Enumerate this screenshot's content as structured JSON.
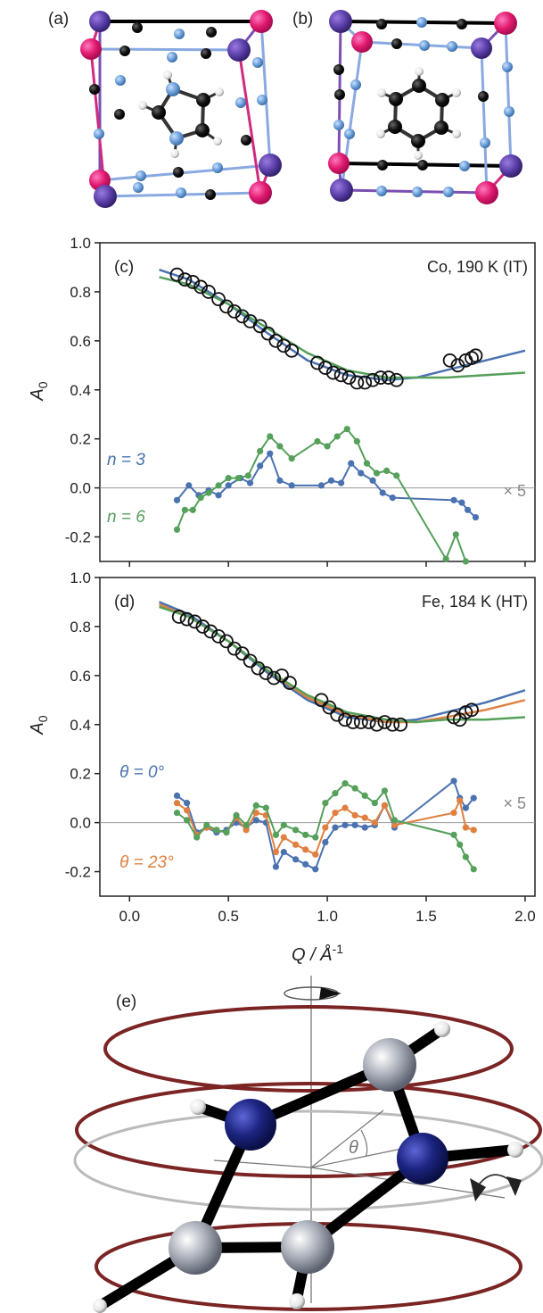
{
  "panel_labels": {
    "a": "(a)",
    "b": "(b)",
    "c": "(c)",
    "d": "(d)",
    "e": "(e)"
  },
  "chart_data": [
    {
      "type": "line",
      "panel": "(c)",
      "annotation": "Co, 190 K (IT)",
      "ylabel": "A",
      "ylabel_sub": "0",
      "xlim": [
        -0.15,
        2.05
      ],
      "ylim": [
        -0.3,
        1.0
      ],
      "yticks": [
        "-0.2",
        "0.0",
        "0.2",
        "0.4",
        "0.6",
        "0.8",
        "1.0"
      ],
      "xticks": [],
      "scale_note": "× 5",
      "colors": {
        "n3": "#4a72b0",
        "n6": "#55a05a",
        "data": "#111111"
      },
      "data_points": {
        "x": [
          0.24,
          0.28,
          0.32,
          0.36,
          0.4,
          0.45,
          0.49,
          0.53,
          0.57,
          0.61,
          0.66,
          0.7,
          0.74,
          0.78,
          0.82,
          0.95,
          0.99,
          1.03,
          1.07,
          1.11,
          1.15,
          1.19,
          1.23,
          1.27,
          1.31,
          1.35,
          1.62,
          1.66,
          1.7,
          1.73,
          1.75
        ],
        "y": [
          0.87,
          0.85,
          0.84,
          0.82,
          0.8,
          0.77,
          0.74,
          0.72,
          0.7,
          0.68,
          0.66,
          0.63,
          0.6,
          0.58,
          0.56,
          0.51,
          0.49,
          0.47,
          0.46,
          0.45,
          0.43,
          0.43,
          0.44,
          0.45,
          0.45,
          0.44,
          0.52,
          0.5,
          0.52,
          0.53,
          0.54
        ]
      },
      "fit_lines": [
        {
          "x": [
            0.15,
            0.3,
            0.5,
            0.7,
            0.9,
            1.1,
            1.3,
            1.45,
            1.6,
            1.8,
            2.0
          ],
          "y": [
            0.89,
            0.85,
            0.75,
            0.63,
            0.52,
            0.46,
            0.44,
            0.45,
            0.48,
            0.52,
            0.56
          ]
        },
        {
          "x": [
            0.15,
            0.3,
            0.5,
            0.7,
            0.9,
            1.1,
            1.3,
            1.45,
            1.6,
            1.8,
            2.0
          ],
          "y": [
            0.86,
            0.83,
            0.75,
            0.65,
            0.55,
            0.48,
            0.45,
            0.45,
            0.45,
            0.46,
            0.47
          ]
        }
      ],
      "series": [
        {
          "name": "n = 3",
          "x": [
            0.24,
            0.3,
            0.35,
            0.4,
            0.45,
            0.5,
            0.56,
            0.61,
            0.66,
            0.71,
            0.76,
            0.82,
            0.97,
            1.02,
            1.07,
            1.12,
            1.17,
            1.23,
            1.28,
            1.33,
            1.64,
            1.68,
            1.71,
            1.75
          ],
          "y": [
            -0.05,
            0.01,
            -0.03,
            -0.01,
            -0.03,
            0.01,
            0.04,
            0.02,
            0.09,
            0.14,
            0.03,
            0.01,
            0.01,
            0.03,
            0.02,
            0.1,
            0.06,
            0.03,
            -0.02,
            -0.04,
            -0.05,
            -0.06,
            -0.09,
            -0.12
          ]
        },
        {
          "name": "n = 6",
          "x": [
            0.24,
            0.28,
            0.32,
            0.36,
            0.4,
            0.45,
            0.5,
            0.55,
            0.6,
            0.66,
            0.71,
            0.76,
            0.82,
            0.95,
            1.0,
            1.05,
            1.1,
            1.15,
            1.2,
            1.25,
            1.3,
            1.35,
            1.6,
            1.65,
            1.7
          ],
          "y": [
            -0.17,
            -0.09,
            -0.09,
            -0.04,
            -0.02,
            0.01,
            0.04,
            0.04,
            0.05,
            0.15,
            0.21,
            0.17,
            0.12,
            0.19,
            0.17,
            0.21,
            0.24,
            0.19,
            0.1,
            0.06,
            0.07,
            0.05,
            -0.29,
            -0.19,
            -0.3
          ]
        }
      ]
    },
    {
      "type": "line",
      "panel": "(d)",
      "annotation": "Fe, 184 K (HT)",
      "ylabel": "A",
      "ylabel_sub": "0",
      "xlabel": "Q / Å",
      "xlabel_sup": "-1",
      "xlim": [
        -0.15,
        2.05
      ],
      "ylim": [
        -0.3,
        1.0
      ],
      "yticks": [
        "-0.2",
        "0.0",
        "0.2",
        "0.4",
        "0.6",
        "0.8",
        "1.0"
      ],
      "xticks": [
        "0.0",
        "0.5",
        "1.0",
        "1.5",
        "2.0"
      ],
      "scale_note": "× 5",
      "colors": {
        "t0": "#4a72b0",
        "t23": "#e08040",
        "t3": "#55a05a",
        "data": "#111111"
      },
      "data_points": {
        "x": [
          0.25,
          0.29,
          0.33,
          0.37,
          0.41,
          0.45,
          0.49,
          0.53,
          0.57,
          0.61,
          0.65,
          0.69,
          0.73,
          0.77,
          0.81,
          0.97,
          1.01,
          1.05,
          1.09,
          1.13,
          1.17,
          1.21,
          1.25,
          1.29,
          1.33,
          1.37,
          1.64,
          1.67,
          1.7,
          1.73
        ],
        "y": [
          0.84,
          0.83,
          0.82,
          0.8,
          0.78,
          0.76,
          0.74,
          0.71,
          0.69,
          0.66,
          0.63,
          0.61,
          0.59,
          0.6,
          0.57,
          0.5,
          0.47,
          0.44,
          0.42,
          0.41,
          0.41,
          0.41,
          0.4,
          0.41,
          0.4,
          0.4,
          0.43,
          0.42,
          0.45,
          0.46
        ]
      },
      "fit_lines": [
        {
          "x": [
            0.15,
            0.3,
            0.5,
            0.7,
            0.9,
            1.1,
            1.3,
            1.45,
            1.6,
            1.8,
            2.0
          ],
          "y": [
            0.9,
            0.85,
            0.74,
            0.61,
            0.5,
            0.43,
            0.41,
            0.42,
            0.45,
            0.49,
            0.54
          ]
        },
        {
          "x": [
            0.15,
            0.3,
            0.5,
            0.7,
            0.9,
            1.1,
            1.3,
            1.45,
            1.6,
            1.8,
            2.0
          ],
          "y": [
            0.89,
            0.84,
            0.74,
            0.62,
            0.51,
            0.44,
            0.41,
            0.41,
            0.43,
            0.46,
            0.5
          ]
        },
        {
          "x": [
            0.15,
            0.3,
            0.5,
            0.7,
            0.9,
            1.1,
            1.3,
            1.45,
            1.6,
            1.8,
            2.0
          ],
          "y": [
            0.88,
            0.84,
            0.74,
            0.62,
            0.52,
            0.45,
            0.42,
            0.41,
            0.42,
            0.42,
            0.43
          ]
        }
      ],
      "series": [
        {
          "name": "θ = 0°",
          "x": [
            0.24,
            0.29,
            0.34,
            0.39,
            0.44,
            0.49,
            0.54,
            0.59,
            0.64,
            0.69,
            0.74,
            0.78,
            0.84,
            0.89,
            0.94,
            0.99,
            1.04,
            1.09,
            1.14,
            1.19,
            1.24,
            1.29,
            1.34,
            1.64,
            1.67,
            1.7,
            1.74
          ],
          "y": [
            0.11,
            0.08,
            -0.04,
            -0.02,
            -0.04,
            -0.03,
            0.0,
            -0.02,
            0.01,
            0.0,
            -0.18,
            -0.12,
            -0.15,
            -0.17,
            -0.19,
            -0.08,
            -0.02,
            -0.01,
            -0.01,
            -0.02,
            -0.01,
            0.07,
            -0.02,
            0.17,
            0.1,
            0.06,
            0.1
          ]
        },
        {
          "name": "θ = 23°",
          "x": [
            0.24,
            0.29,
            0.34,
            0.39,
            0.44,
            0.49,
            0.54,
            0.59,
            0.64,
            0.69,
            0.74,
            0.78,
            0.84,
            0.89,
            0.94,
            0.99,
            1.04,
            1.09,
            1.14,
            1.19,
            1.24,
            1.29,
            1.34,
            1.64,
            1.67,
            1.7,
            1.74
          ],
          "y": [
            0.08,
            0.05,
            -0.05,
            -0.02,
            -0.03,
            -0.04,
            0.02,
            -0.03,
            0.04,
            0.03,
            -0.12,
            -0.06,
            -0.09,
            -0.11,
            -0.13,
            -0.02,
            0.04,
            0.06,
            0.03,
            0.02,
            0.0,
            0.07,
            -0.01,
            0.04,
            0.09,
            -0.02,
            -0.03
          ]
        },
        {
          "name": "",
          "x": [
            0.24,
            0.29,
            0.34,
            0.39,
            0.44,
            0.49,
            0.54,
            0.59,
            0.64,
            0.69,
            0.74,
            0.78,
            0.84,
            0.89,
            0.94,
            0.99,
            1.04,
            1.09,
            1.14,
            1.19,
            1.24,
            1.29,
            1.34,
            1.64,
            1.67,
            1.7,
            1.74
          ],
          "y": [
            0.04,
            0.01,
            -0.06,
            -0.01,
            -0.03,
            -0.04,
            0.03,
            -0.01,
            0.07,
            0.06,
            -0.05,
            -0.01,
            -0.03,
            -0.05,
            -0.06,
            0.08,
            0.12,
            0.16,
            0.14,
            0.11,
            0.08,
            0.13,
            0.01,
            -0.05,
            -0.09,
            -0.14,
            -0.19
          ]
        }
      ]
    }
  ],
  "panel_e": {
    "angle_label": "θ"
  }
}
